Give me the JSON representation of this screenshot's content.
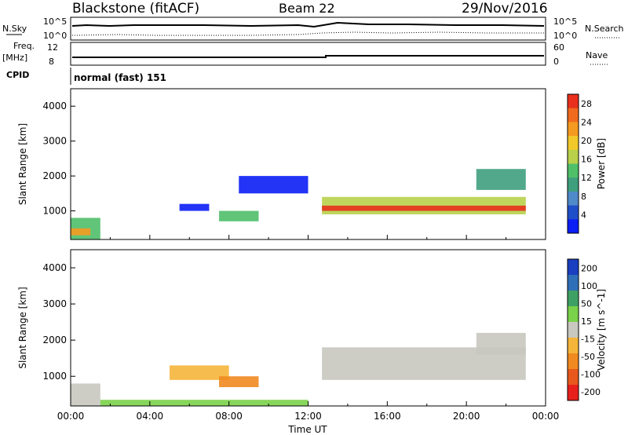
{
  "header": {
    "station": "Blackstone (fitACF)",
    "beam": "Beam 22",
    "date": "29/Nov/2016"
  },
  "top_panel": {
    "nsky_label": "N.Sky",
    "nsearch_label": "N.Search",
    "freq_label": "Freq.",
    "freq_unit": "[MHz]",
    "nave_label": "Nave",
    "cpid_label": "CPID",
    "cpid_value": "normal (fast) 151",
    "noise_ticks": [
      "10^5",
      "10^0"
    ],
    "freq_ticks": [
      "12",
      "8"
    ],
    "nave_ticks": [
      "60",
      "0"
    ]
  },
  "chart_data": [
    {
      "type": "heatmap",
      "name": "power",
      "ylabel": "Slant Range [km]",
      "x_ticks": [
        "00:00",
        "04:00",
        "08:00",
        "12:00",
        "16:00",
        "20:00",
        "00:00"
      ],
      "xlim_hours": [
        0,
        24
      ],
      "ylim": [
        180,
        4500
      ],
      "y_ticks": [
        1000,
        2000,
        3000,
        4000
      ],
      "colorbar_label": "Power [dB]",
      "colorbar_ticks": [
        4,
        8,
        12,
        16,
        20,
        24,
        28
      ],
      "colors": [
        "#0b1ef5",
        "#1f4fc8",
        "#4f8ac9",
        "#3f9f7d",
        "#4fbf6a",
        "#b8d04a",
        "#f2c92a",
        "#f59a20",
        "#f06a1e",
        "#e8301c"
      ],
      "regions": [
        {
          "t0": 0.0,
          "t1": 1.5,
          "r0": 180,
          "r1": 800,
          "value": 14
        },
        {
          "t0": 0.0,
          "t1": 1.0,
          "r0": 300,
          "r1": 500,
          "value": 22
        },
        {
          "t0": 5.5,
          "t1": 7.0,
          "r0": 1000,
          "r1": 1200,
          "value": 6
        },
        {
          "t0": 7.5,
          "t1": 9.5,
          "r0": 700,
          "r1": 1000,
          "value": 14
        },
        {
          "t0": 8.5,
          "t1": 12.0,
          "r0": 1500,
          "r1": 2000,
          "value": 6
        },
        {
          "t0": 12.7,
          "t1": 23.0,
          "r0": 900,
          "r1": 1400,
          "value": 18
        },
        {
          "t0": 12.7,
          "t1": 23.0,
          "r0": 1000,
          "r1": 1150,
          "value": 26
        },
        {
          "t0": 20.5,
          "t1": 23.0,
          "r0": 1600,
          "r1": 2200,
          "value": 12
        }
      ]
    },
    {
      "type": "heatmap",
      "name": "velocity",
      "ylabel": "Slant Range [km]",
      "xlabel": "Time UT",
      "x_ticks": [
        "00:00",
        "04:00",
        "08:00",
        "12:00",
        "16:00",
        "20:00",
        "00:00"
      ],
      "xlim_hours": [
        0,
        24
      ],
      "ylim": [
        180,
        4500
      ],
      "y_ticks": [
        1000,
        2000,
        3000,
        4000
      ],
      "colorbar_label": "Velocity [m s^-1]",
      "colorbar_ticks": [
        200,
        100,
        50,
        15,
        -15,
        -50,
        -100,
        -200
      ],
      "colors": [
        "#1a3fc0",
        "#2f6fb8",
        "#3fa064",
        "#7ad14a",
        "#c8c8c0",
        "#f5b53a",
        "#f08a20",
        "#e8581c",
        "#e8201c"
      ],
      "regions": [
        {
          "t0": 0.0,
          "t1": 1.5,
          "r0": 180,
          "r1": 800,
          "value": 0
        },
        {
          "t0": 1.5,
          "t1": 12.0,
          "r0": 180,
          "r1": 350,
          "value": 60
        },
        {
          "t0": 5.0,
          "t1": 8.0,
          "r0": 900,
          "r1": 1300,
          "value": -60
        },
        {
          "t0": 7.5,
          "t1": 9.5,
          "r0": 700,
          "r1": 1000,
          "value": -90
        },
        {
          "t0": 12.7,
          "t1": 23.0,
          "r0": 900,
          "r1": 1800,
          "value": 0
        },
        {
          "t0": 20.5,
          "t1": 23.0,
          "r0": 1600,
          "r1": 2200,
          "value": 0
        }
      ]
    }
  ]
}
